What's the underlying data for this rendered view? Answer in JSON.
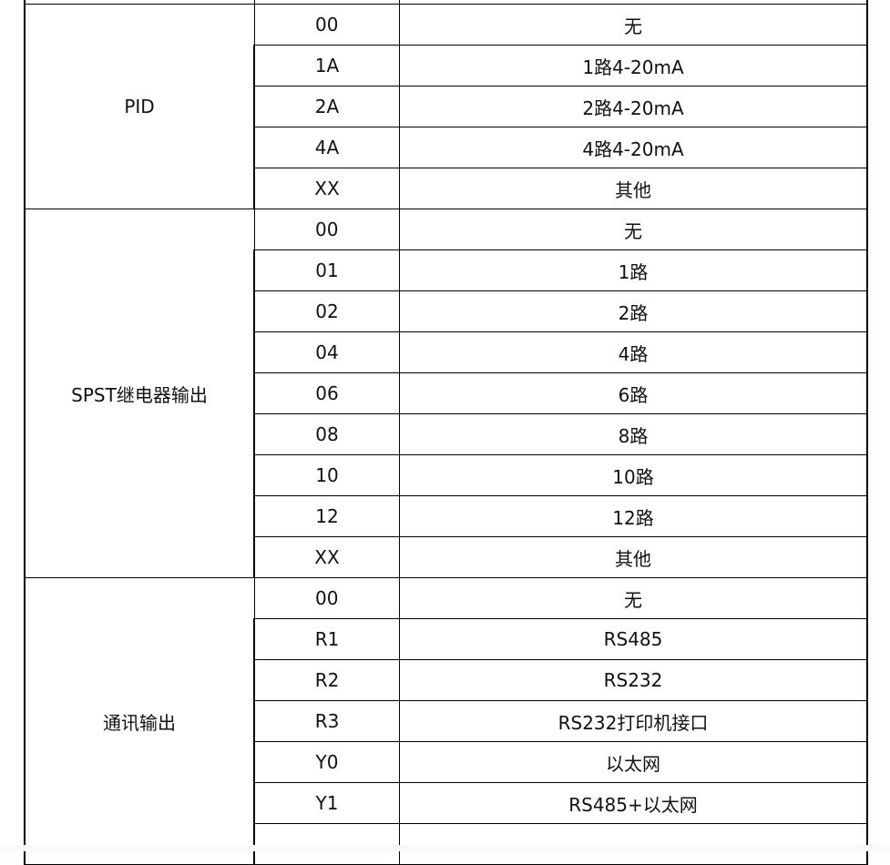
{
  "groups": [
    {
      "label": "",
      "rows": [
        {
          "code": "",
          "desc": ""
        }
      ]
    },
    {
      "label": "PID",
      "rows": [
        {
          "code": "00",
          "desc": "无"
        },
        {
          "code": "1A",
          "desc": "1路4-20mA"
        },
        {
          "code": "2A",
          "desc": "2路4-20mA"
        },
        {
          "code": "4A",
          "desc": "4路4-20mA"
        },
        {
          "code": "XX",
          "desc": "其他"
        }
      ]
    },
    {
      "label": "SPST继电器输出",
      "rows": [
        {
          "code": "00",
          "desc": "无"
        },
        {
          "code": "01",
          "desc": "1路"
        },
        {
          "code": "02",
          "desc": "2路"
        },
        {
          "code": "04",
          "desc": "4路"
        },
        {
          "code": "06",
          "desc": "6路"
        },
        {
          "code": "08",
          "desc": "8路"
        },
        {
          "code": "10",
          "desc": "10路"
        },
        {
          "code": "12",
          "desc": "12路"
        },
        {
          "code": "XX",
          "desc": "其他"
        }
      ]
    },
    {
      "label": "通讯输出",
      "rows": [
        {
          "code": "00",
          "desc": "无"
        },
        {
          "code": "R1",
          "desc": "RS485"
        },
        {
          "code": "R2",
          "desc": "RS232"
        },
        {
          "code": "R3",
          "desc": "RS232打印机接口"
        },
        {
          "code": "Y0",
          "desc": "以太网"
        },
        {
          "code": "Y1",
          "desc": "RS485+以太网"
        },
        {
          "code": "",
          "desc": ""
        }
      ]
    }
  ]
}
